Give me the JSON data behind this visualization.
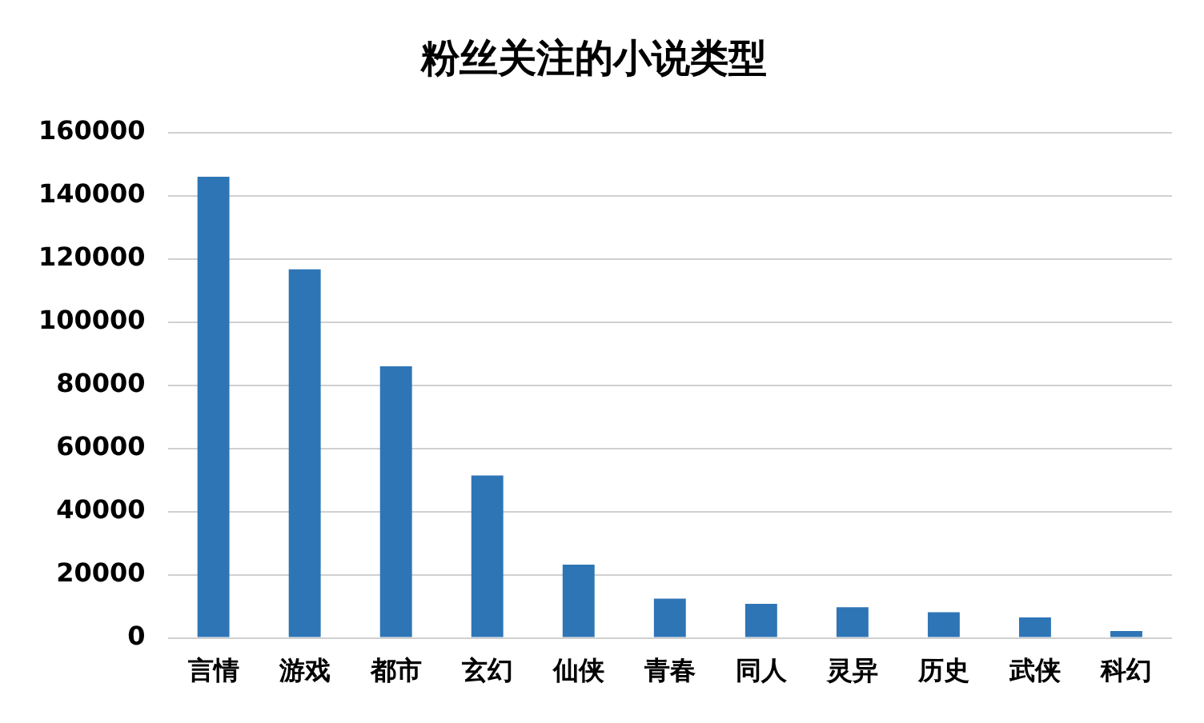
{
  "chart_data": {
    "type": "bar",
    "title": "粉丝关注的小说类型",
    "categories": [
      "言情",
      "游戏",
      "都市",
      "玄幻",
      "仙侠",
      "青春",
      "同人",
      "灵异",
      "历史",
      "武侠",
      "科幻"
    ],
    "values": [
      146000,
      116700,
      86000,
      51400,
      23200,
      12400,
      10800,
      9700,
      8100,
      6500,
      2200
    ],
    "color": "#2e75b6",
    "ylim": [
      0,
      160000
    ],
    "yticks": [
      0,
      20000,
      40000,
      60000,
      80000,
      100000,
      120000,
      140000,
      160000
    ],
    "grid": "y",
    "legend": false
  }
}
